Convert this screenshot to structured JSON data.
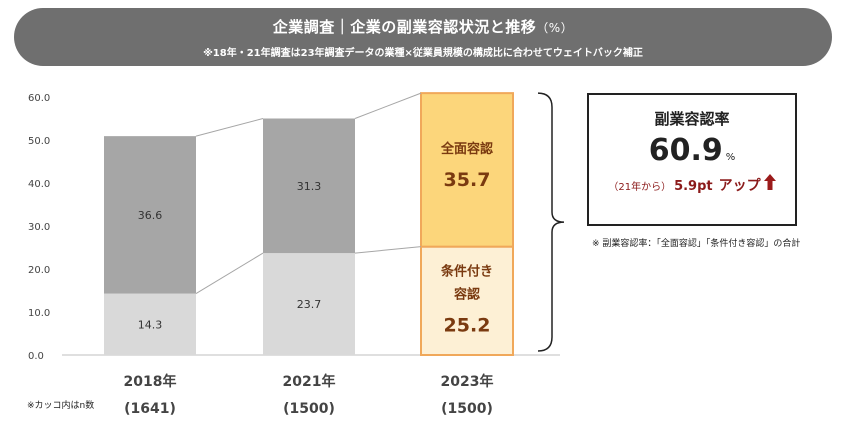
{
  "header": {
    "title": "企業調査｜企業の副業容認状況と推移",
    "unit": "（%）",
    "subtitle": "※18年・21年調査は23年調査データの業種×従業員規模の構成比に合わせてウェイトバック補正"
  },
  "chart_data": {
    "type": "bar",
    "stacked": true,
    "categories": [
      "2018年",
      "2021年",
      "2023年"
    ],
    "category_sublabels": [
      "(1641)",
      "(1500)",
      "(1500)"
    ],
    "ylim": [
      0,
      60
    ],
    "yticks": [
      "0.0",
      "10.0",
      "20.0",
      "30.0",
      "40.0",
      "50.0",
      "60.0"
    ],
    "series": [
      {
        "name": "条件付き容認",
        "values": [
          14.3,
          23.7,
          25.2
        ],
        "labels": [
          "14.3",
          "23.7",
          "25.2"
        ],
        "colors": [
          "#d9d9d9",
          "#d9d9d9",
          "#fdf0d5"
        ]
      },
      {
        "name": "全面容認",
        "values": [
          36.6,
          31.3,
          35.7
        ],
        "labels": [
          "36.6",
          "31.3",
          "35.7"
        ],
        "colors": [
          "#a6a6a6",
          "#a6a6a6",
          "#fcd67b"
        ]
      }
    ],
    "highlight_labels": {
      "conditional": "条件付き容認",
      "full": "全面容認"
    },
    "highlight_border": "#f0a85a"
  },
  "callout": {
    "heading": "副業容認率",
    "value": "60.9",
    "unit": "%",
    "delta_prefix": "（21年から）",
    "delta_value": "5.9pt",
    "delta_text": "アップ",
    "arrow_color": "#9b1b1b"
  },
  "footnotes": {
    "definition": "※ 副業容認率：「全面容認」「条件付き容認」の合計",
    "n_note": "※カッコ内はn数"
  }
}
